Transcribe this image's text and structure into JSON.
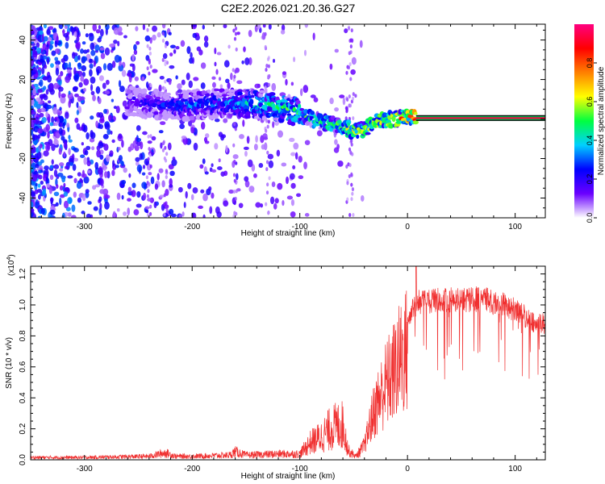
{
  "title": "C2E2.2026.021.20.36.G27",
  "colors": {
    "snr_line": "#f03030",
    "frame": "#000000",
    "background": "#ffffff"
  },
  "chart_data": [
    {
      "type": "heatmap",
      "name": "spectrogram",
      "xlabel": "Height of straight line (km)",
      "ylabel": "Frequency (Hz)",
      "xlim": [
        -350,
        128
      ],
      "ylim": [
        -50,
        48
      ],
      "x_ticks": [
        -300,
        -200,
        -100,
        0,
        100
      ],
      "y_ticks": [
        -40,
        -20,
        0,
        20,
        40
      ],
      "colorbar": {
        "label": "Normalized spectral amplitude",
        "range": [
          0,
          1
        ],
        "ticks": [
          "0.0",
          "0.2",
          "0.4",
          "0.6",
          "0.8"
        ],
        "colormap": [
          "#ffffff",
          "#6a00ff",
          "#0000ff",
          "#00d0ff",
          "#00ff40",
          "#ffff00",
          "#ff8000",
          "#ff0000",
          "#ff0080"
        ]
      },
      "ridge": {
        "x": [
          -255,
          -230,
          -200,
          -170,
          -150,
          -125,
          -105,
          -90,
          -75,
          -60,
          -50,
          -40,
          -30,
          -20,
          -10,
          0,
          8,
          128
        ],
        "freq": [
          9,
          7,
          7,
          8,
          8,
          7,
          4,
          0,
          -2,
          -4,
          -6,
          -5,
          -2,
          0,
          0,
          1,
          0.5,
          0.5
        ],
        "amplitude": [
          0.25,
          0.3,
          0.35,
          0.35,
          0.45,
          0.5,
          0.55,
          0.55,
          0.6,
          0.65,
          0.7,
          0.72,
          0.75,
          0.8,
          0.85,
          0.9,
          0.95,
          1.0
        ]
      }
    },
    {
      "type": "line",
      "name": "snr",
      "xlabel": "Height of straight line (km)",
      "ylabel": "SNR (10 * v/v)",
      "multiplier_label": "(x10",
      "multiplier_exp": "4",
      "xlim": [
        -350,
        128
      ],
      "ylim": [
        0,
        1.25
      ],
      "x_ticks": [
        -300,
        -200,
        -100,
        0,
        100
      ],
      "y_ticks": [
        "0.0",
        "0.2",
        "0.4",
        "0.6",
        "0.8",
        "1.0",
        "1.2"
      ],
      "envelope": {
        "x": [
          -350,
          -300,
          -240,
          -225,
          -215,
          -200,
          -165,
          -160,
          -150,
          -120,
          -100,
          -90,
          -80,
          -70,
          -60,
          -55,
          -48,
          -40,
          -35,
          -30,
          -25,
          -20,
          -15,
          -10,
          -5,
          0,
          5,
          10,
          20,
          30,
          40,
          50,
          60,
          70,
          80,
          90,
          100,
          110,
          120,
          128
        ],
        "y": [
          0.02,
          0.02,
          0.03,
          0.06,
          0.03,
          0.03,
          0.04,
          0.07,
          0.04,
          0.05,
          0.05,
          0.15,
          0.2,
          0.28,
          0.3,
          0.08,
          0.03,
          0.12,
          0.3,
          0.45,
          0.55,
          0.65,
          0.72,
          0.8,
          0.9,
          0.95,
          1.05,
          1.1,
          1.1,
          1.12,
          1.12,
          1.12,
          1.12,
          1.12,
          1.1,
          1.08,
          1.05,
          1.0,
          0.95,
          0.95
        ]
      }
    }
  ]
}
